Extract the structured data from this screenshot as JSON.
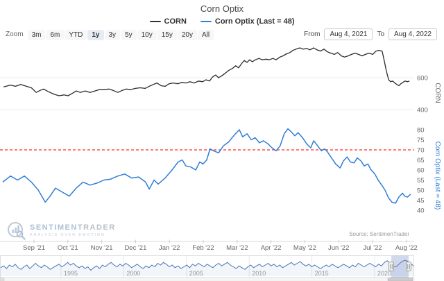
{
  "title": "Corn Optix",
  "legend": [
    {
      "label": "CORN",
      "color": "#333333"
    },
    {
      "label": "Corn Optix (Last = 48)",
      "color": "#2f7ed8"
    }
  ],
  "toolbar": {
    "zoom_label": "Zoom",
    "buttons": [
      "3m",
      "6m",
      "YTD",
      "1y",
      "3y",
      "5y",
      "10y",
      "15y",
      "20y",
      "All"
    ],
    "active_button": "1y",
    "from_label": "From",
    "from_value": "Aug 4, 2021",
    "to_label": "To",
    "to_value": "Aug 4, 2022"
  },
  "watermark": {
    "brand_part1": "SENTIMEN",
    "brand_part2": "TRADER",
    "tagline": "Analysis over Emotion"
  },
  "source_text": "Source: SentimenTrader",
  "x_axis": {
    "labels": [
      "Sep '21",
      "Oct '21",
      "Nov '21",
      "Dec '21",
      "Jan '22",
      "Feb '22",
      "Mar '22",
      "Apr '22",
      "May '22",
      "Jun '22",
      "Jul '22",
      "Aug '22"
    ]
  },
  "chart_data": [
    {
      "type": "line",
      "panel": "price",
      "name": "CORN",
      "color": "#2b2b2b",
      "axis_title": "CORN",
      "x_range": [
        "Aug 4, 2021",
        "Aug 4, 2022"
      ],
      "y_ticks": [
        400,
        600
      ],
      "ylim": [
        380,
        820
      ],
      "grid": true,
      "legend_position": "top",
      "points": [
        [
          0.002,
          542
        ],
        [
          0.019,
          554
        ],
        [
          0.031,
          546
        ],
        [
          0.044,
          558
        ],
        [
          0.058,
          546
        ],
        [
          0.07,
          537
        ],
        [
          0.082,
          508
        ],
        [
          0.092,
          521
        ],
        [
          0.1,
          529
        ],
        [
          0.112,
          512
        ],
        [
          0.126,
          496
        ],
        [
          0.138,
          487
        ],
        [
          0.15,
          492
        ],
        [
          0.16,
          487
        ],
        [
          0.172,
          504
        ],
        [
          0.18,
          517
        ],
        [
          0.19,
          508
        ],
        [
          0.202,
          517
        ],
        [
          0.214,
          508
        ],
        [
          0.226,
          517
        ],
        [
          0.236,
          525
        ],
        [
          0.248,
          525
        ],
        [
          0.26,
          529
        ],
        [
          0.27,
          521
        ],
        [
          0.282,
          508
        ],
        [
          0.293,
          521
        ],
        [
          0.303,
          529
        ],
        [
          0.313,
          525
        ],
        [
          0.325,
          533
        ],
        [
          0.337,
          537
        ],
        [
          0.349,
          533
        ],
        [
          0.359,
          546
        ],
        [
          0.369,
          558
        ],
        [
          0.378,
          567
        ],
        [
          0.388,
          550
        ],
        [
          0.398,
          546
        ],
        [
          0.408,
          562
        ],
        [
          0.418,
          567
        ],
        [
          0.429,
          562
        ],
        [
          0.439,
          571
        ],
        [
          0.449,
          567
        ],
        [
          0.459,
          575
        ],
        [
          0.469,
          567
        ],
        [
          0.48,
          579
        ],
        [
          0.49,
          575
        ],
        [
          0.498,
          587
        ],
        [
          0.507,
          579
        ],
        [
          0.514,
          604
        ],
        [
          0.522,
          617
        ],
        [
          0.529,
          600
        ],
        [
          0.537,
          612
        ],
        [
          0.546,
          629
        ],
        [
          0.554,
          646
        ],
        [
          0.563,
          658
        ],
        [
          0.571,
          675
        ],
        [
          0.578,
          662
        ],
        [
          0.585,
          687
        ],
        [
          0.592,
          708
        ],
        [
          0.599,
          696
        ],
        [
          0.605,
          712
        ],
        [
          0.612,
          700
        ],
        [
          0.619,
          712
        ],
        [
          0.628,
          721
        ],
        [
          0.636,
          712
        ],
        [
          0.645,
          716
        ],
        [
          0.653,
          712
        ],
        [
          0.662,
          721
        ],
        [
          0.67,
          712
        ],
        [
          0.679,
          729
        ],
        [
          0.687,
          737
        ],
        [
          0.696,
          750
        ],
        [
          0.704,
          758
        ],
        [
          0.711,
          771
        ],
        [
          0.719,
          779
        ],
        [
          0.728,
          787
        ],
        [
          0.736,
          779
        ],
        [
          0.745,
          783
        ],
        [
          0.753,
          775
        ],
        [
          0.762,
          787
        ],
        [
          0.77,
          775
        ],
        [
          0.779,
          767
        ],
        [
          0.787,
          779
        ],
        [
          0.796,
          762
        ],
        [
          0.804,
          754
        ],
        [
          0.813,
          746
        ],
        [
          0.821,
          758
        ],
        [
          0.83,
          737
        ],
        [
          0.838,
          729
        ],
        [
          0.847,
          737
        ],
        [
          0.855,
          746
        ],
        [
          0.864,
          754
        ],
        [
          0.872,
          746
        ],
        [
          0.881,
          737
        ],
        [
          0.889,
          746
        ],
        [
          0.898,
          754
        ],
        [
          0.907,
          746
        ],
        [
          0.915,
          767
        ],
        [
          0.923,
          771
        ],
        [
          0.93,
          767
        ],
        [
          0.935,
          708
        ],
        [
          0.94,
          646
        ],
        [
          0.946,
          587
        ],
        [
          0.951,
          575
        ],
        [
          0.956,
          579
        ],
        [
          0.961,
          567
        ],
        [
          0.966,
          558
        ],
        [
          0.971,
          550
        ],
        [
          0.976,
          562
        ],
        [
          0.981,
          571
        ],
        [
          0.986,
          579
        ],
        [
          0.992,
          575
        ],
        [
          0.997,
          579
        ]
      ]
    },
    {
      "type": "line",
      "panel": "optix",
      "name": "Corn Optix (Last = 48)",
      "color": "#2f7ed8",
      "axis_title": "Corn Optix (Last = 48)",
      "last_value": 48,
      "x_range": [
        "Aug 4, 2021",
        "Aug 4, 2022"
      ],
      "y_ticks": [
        40,
        45,
        50,
        55,
        60,
        65,
        70,
        75,
        80
      ],
      "ylim": [
        38,
        84
      ],
      "grid": false,
      "threshold_line": {
        "value": 70,
        "color": "#ff4d4d",
        "style": "dashed"
      },
      "points": [
        [
          0.0,
          54
        ],
        [
          0.019,
          57
        ],
        [
          0.036,
          55
        ],
        [
          0.053,
          57
        ],
        [
          0.07,
          54
        ],
        [
          0.087,
          50
        ],
        [
          0.104,
          44
        ],
        [
          0.116,
          47
        ],
        [
          0.129,
          51
        ],
        [
          0.146,
          49
        ],
        [
          0.163,
          47
        ],
        [
          0.18,
          51
        ],
        [
          0.197,
          54
        ],
        [
          0.214,
          52.5
        ],
        [
          0.231,
          53.5
        ],
        [
          0.248,
          55
        ],
        [
          0.265,
          55.5
        ],
        [
          0.282,
          57
        ],
        [
          0.299,
          58
        ],
        [
          0.316,
          56
        ],
        [
          0.333,
          56.5
        ],
        [
          0.35,
          54
        ],
        [
          0.359,
          50.5
        ],
        [
          0.371,
          55
        ],
        [
          0.381,
          53
        ],
        [
          0.398,
          56
        ],
        [
          0.415,
          60
        ],
        [
          0.43,
          64
        ],
        [
          0.44,
          65
        ],
        [
          0.449,
          62
        ],
        [
          0.461,
          61.5
        ],
        [
          0.473,
          60
        ],
        [
          0.483,
          64
        ],
        [
          0.491,
          63
        ],
        [
          0.5,
          65
        ],
        [
          0.508,
          70.5
        ],
        [
          0.517,
          69.5
        ],
        [
          0.529,
          68.5
        ],
        [
          0.541,
          72
        ],
        [
          0.554,
          74
        ],
        [
          0.568,
          77.5
        ],
        [
          0.58,
          80
        ],
        [
          0.588,
          76.5
        ],
        [
          0.599,
          78
        ],
        [
          0.609,
          75
        ],
        [
          0.619,
          76
        ],
        [
          0.629,
          73.5
        ],
        [
          0.639,
          74.5
        ],
        [
          0.65,
          73
        ],
        [
          0.66,
          71
        ],
        [
          0.67,
          69.5
        ],
        [
          0.68,
          72
        ],
        [
          0.69,
          78
        ],
        [
          0.699,
          80.5
        ],
        [
          0.707,
          79
        ],
        [
          0.716,
          77
        ],
        [
          0.724,
          78.5
        ],
        [
          0.735,
          76
        ],
        [
          0.745,
          73
        ],
        [
          0.755,
          71
        ],
        [
          0.762,
          74.5
        ],
        [
          0.772,
          72
        ],
        [
          0.781,
          69.5
        ],
        [
          0.789,
          70.5
        ],
        [
          0.796,
          69
        ],
        [
          0.806,
          66
        ],
        [
          0.816,
          63
        ],
        [
          0.827,
          61
        ],
        [
          0.835,
          64.5
        ],
        [
          0.844,
          66.5
        ],
        [
          0.852,
          64
        ],
        [
          0.861,
          63.5
        ],
        [
          0.869,
          66
        ],
        [
          0.878,
          64.5
        ],
        [
          0.886,
          62
        ],
        [
          0.895,
          63
        ],
        [
          0.903,
          60
        ],
        [
          0.912,
          58
        ],
        [
          0.92,
          55
        ],
        [
          0.929,
          52.5
        ],
        [
          0.937,
          50
        ],
        [
          0.946,
          46
        ],
        [
          0.954,
          44
        ],
        [
          0.963,
          43.5
        ],
        [
          0.971,
          46.5
        ],
        [
          0.98,
          48.5
        ],
        [
          0.985,
          47
        ],
        [
          0.992,
          46.5
        ],
        [
          1.0,
          48
        ]
      ]
    },
    {
      "type": "line",
      "panel": "navigator",
      "name": "Corn Optix full history",
      "color": "#4a72b5",
      "x_labels": [
        "1995",
        "2000",
        "2005",
        "2010",
        "2015",
        "2020"
      ],
      "selected_range": [
        "Aug 4, 2021",
        "Aug 4, 2022"
      ],
      "values": [
        0.45,
        0.55,
        0.4,
        0.6,
        0.5,
        0.65,
        0.45,
        0.35,
        0.5,
        0.6,
        0.4,
        0.55,
        0.7,
        0.55,
        0.45,
        0.6,
        0.5,
        0.35,
        0.45,
        0.55,
        0.65,
        0.5,
        0.6,
        0.75,
        0.6,
        0.7,
        0.55,
        0.45,
        0.55,
        0.4,
        0.5,
        0.3,
        0.45,
        0.55,
        0.4,
        0.6,
        0.5,
        0.65,
        0.75,
        0.6,
        0.5,
        0.65,
        0.55,
        0.7,
        0.6,
        0.45,
        0.55,
        0.65,
        0.5,
        0.4,
        0.55,
        0.45,
        0.6,
        0.5,
        0.7,
        0.6,
        0.75,
        0.65,
        0.5,
        0.6,
        0.45,
        0.55,
        0.4,
        0.5,
        0.6,
        0.45,
        0.65,
        0.55,
        0.7,
        0.6,
        0.5,
        0.65,
        0.55,
        0.45,
        0.6,
        0.7,
        0.55,
        0.65,
        0.75,
        0.6,
        0.5,
        0.4,
        0.55,
        0.45,
        0.35,
        0.5,
        0.6,
        0.45,
        0.55,
        0.65,
        0.5,
        0.6,
        0.7,
        0.55,
        0.65,
        0.5,
        0.6,
        0.45,
        0.55,
        0.65,
        0.75,
        0.6,
        0.7,
        0.8,
        0.65,
        0.55,
        0.65,
        0.5,
        0.6,
        0.5,
        0.4,
        0.5,
        0.6,
        0.5,
        0.65,
        0.55,
        0.45,
        0.55,
        0.65,
        0.55,
        0.45,
        0.6,
        0.5,
        0.7,
        0.6,
        0.5,
        0.6,
        0.7,
        0.6,
        0.5,
        0.65,
        0.55,
        0.75,
        0.85,
        0.7,
        0.55,
        0.5,
        0.65,
        0.8,
        0.88,
        0.82,
        0.7,
        0.55
      ]
    }
  ]
}
